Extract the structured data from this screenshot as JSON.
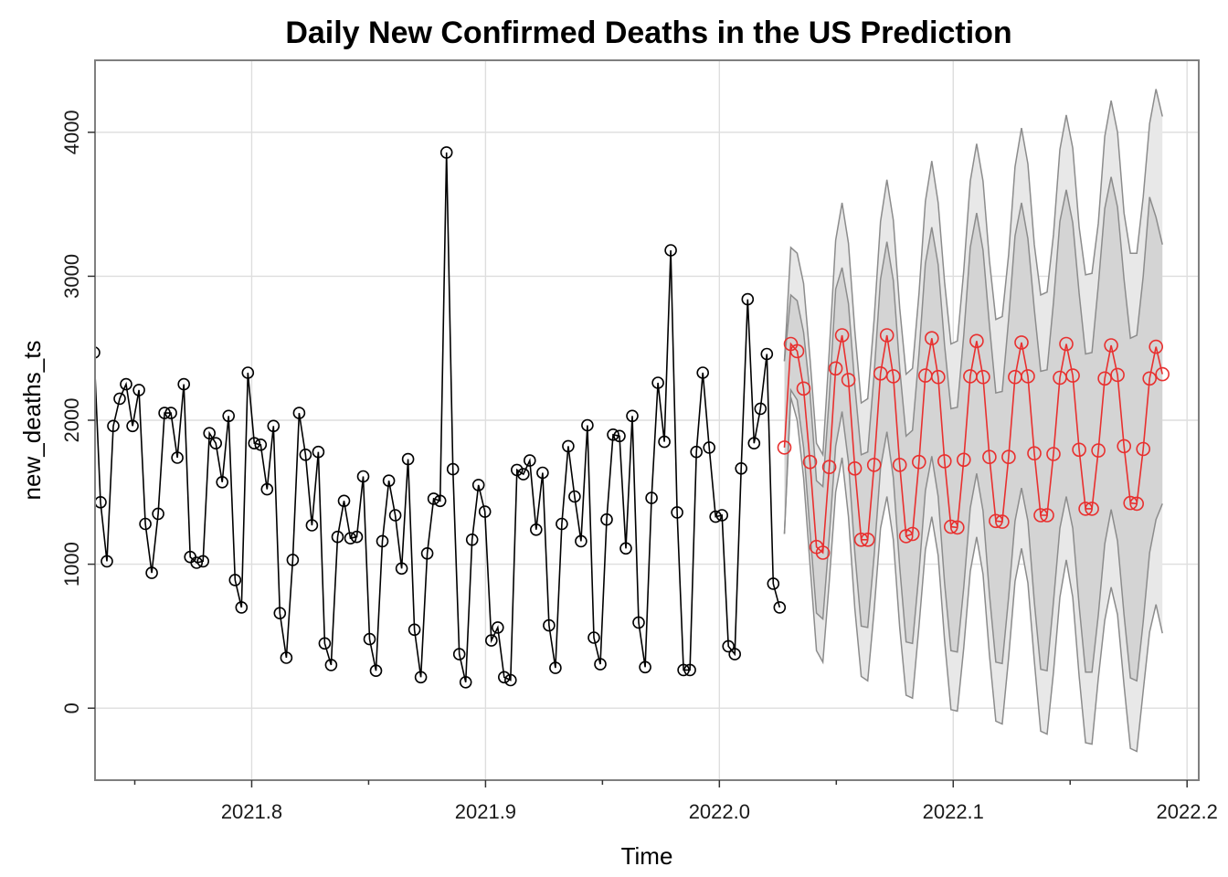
{
  "chart_data": {
    "type": "line",
    "title": "Daily New Confirmed Deaths in the US Prediction",
    "xlabel": "Time",
    "ylabel": "new_deaths_ts",
    "xlim": [
      2021.733,
      2022.205
    ],
    "ylim": [
      -500,
      4500
    ],
    "x_ticks": [
      2021.8,
      2021.9,
      2022.0,
      2022.1,
      2022.2
    ],
    "x_tick_labels": [
      "2021.8",
      "2021.9",
      "2022.0",
      "2022.1",
      "2022.2"
    ],
    "x_minor_ticks": [
      2021.75,
      2021.85,
      2021.95,
      2022.05,
      2022.15
    ],
    "y_ticks": [
      0,
      1000,
      2000,
      3000,
      4000
    ],
    "y_tick_labels": [
      "0",
      "1000",
      "2000",
      "3000",
      "4000"
    ],
    "grid": true,
    "step": 0.00274,
    "observed_start": 2021.7326,
    "forecast_start": 2022.0278,
    "series": [
      {
        "role": "observed",
        "color": "#000000",
        "values": [
          2470,
          1430,
          1020,
          1960,
          2150,
          2250,
          1960,
          2210,
          1280,
          940,
          1350,
          2050,
          2050,
          1740,
          2250,
          1050,
          1010,
          1020,
          1910,
          1840,
          1570,
          2030,
          890,
          700,
          2330,
          1840,
          1830,
          1520,
          1960,
          660,
          350,
          1030,
          2050,
          1760,
          1270,
          1780,
          450,
          300,
          1190,
          1440,
          1180,
          1190,
          1610,
          480,
          260,
          1160,
          1580,
          1340,
          970,
          1730,
          545,
          215,
          1075,
          1455,
          1440,
          3860,
          1660,
          375,
          180,
          1170,
          1550,
          1365,
          470,
          560,
          215,
          195,
          1655,
          1625,
          1720,
          1240,
          1635,
          575,
          280,
          1280,
          1820,
          1470,
          1160,
          1965,
          490,
          305,
          1310,
          1900,
          1890,
          1110,
          2030,
          595,
          285,
          1460,
          2260,
          1850,
          3180,
          1360,
          265,
          265,
          1780,
          2330,
          1810,
          1330,
          1340,
          430,
          375,
          1665,
          2840,
          1840,
          2080,
          2460,
          865,
          700
        ]
      },
      {
        "role": "forecast",
        "color": "#e8302f",
        "values": [
          1810,
          2530,
          2480,
          2220,
          1710,
          1120,
          1080,
          1675,
          2360,
          2590,
          2280,
          1665,
          1170,
          1170,
          1690,
          2325,
          2590,
          2305,
          1690,
          1195,
          1210,
          1710,
          2310,
          2570,
          2300,
          1715,
          1260,
          1255,
          1725,
          2305,
          2550,
          2300,
          1745,
          1300,
          1295,
          1745,
          2300,
          2540,
          2305,
          1770,
          1340,
          1340,
          1765,
          2295,
          2530,
          2310,
          1795,
          1385,
          1385,
          1790,
          2290,
          2520,
          2315,
          1820,
          1425,
          1420,
          1800,
          2290,
          2510,
          2320
        ]
      }
    ],
    "intervals": [
      {
        "level": "80",
        "color": "#d4d4d4",
        "lower": [
          1210,
          2210,
          2140,
          1810,
          1230,
          660,
          620,
          1190,
          1820,
          2060,
          1710,
          1080,
          570,
          560,
          1060,
          1670,
          1920,
          1600,
          980,
          460,
          450,
          940,
          1510,
          1750,
          1470,
          870,
          400,
          390,
          840,
          1390,
          1630,
          1370,
          790,
          320,
          310,
          770,
          1300,
          1530,
          1300,
          740,
          270,
          260,
          740,
          1250,
          1470,
          1250,
          710,
          250,
          250,
          650,
          1140,
          1380,
          1160,
          650,
          210,
          190,
          600,
          1080,
          1310,
          1420
        ],
        "upper": [
          2410,
          2870,
          2830,
          2610,
          2190,
          1580,
          1540,
          2160,
          2910,
          3060,
          2810,
          2240,
          1760,
          1780,
          2320,
          2980,
          3240,
          2970,
          2360,
          1890,
          1930,
          2460,
          3090,
          3340,
          3080,
          2520,
          2080,
          2090,
          2590,
          3200,
          3440,
          3180,
          2660,
          2190,
          2200,
          2700,
          3280,
          3510,
          3260,
          2770,
          2340,
          2350,
          2820,
          3380,
          3600,
          3370,
          2880,
          2460,
          2470,
          2940,
          3470,
          3690,
          3480,
          2980,
          2570,
          2590,
          3000,
          3550,
          3410,
          3220
        ]
      },
      {
        "level": "95",
        "color": "#e8e8e8",
        "lower": [
          1210,
          2160,
          2000,
          1600,
          1000,
          400,
          320,
          880,
          1500,
          1740,
          1330,
          690,
          220,
          190,
          680,
          1250,
          1470,
          1170,
          560,
          90,
          70,
          570,
          1100,
          1330,
          1060,
          470,
          -10,
          -20,
          420,
          950,
          1190,
          930,
          370,
          -90,
          -110,
          350,
          880,
          1110,
          870,
          330,
          -160,
          -180,
          250,
          770,
          1030,
          770,
          220,
          -240,
          -250,
          210,
          610,
          840,
          650,
          160,
          -280,
          -300,
          120,
          530,
          720,
          520
        ],
        "upper": [
          2410,
          3200,
          3160,
          2950,
          2430,
          1840,
          1760,
          2480,
          3250,
          3510,
          3230,
          2620,
          2120,
          2150,
          2700,
          3380,
          3670,
          3390,
          2780,
          2320,
          2360,
          2880,
          3520,
          3800,
          3510,
          2960,
          2530,
          2550,
          3040,
          3660,
          3920,
          3660,
          3110,
          2700,
          2720,
          3150,
          3760,
          4030,
          3780,
          3220,
          2870,
          2890,
          3290,
          3880,
          4120,
          3890,
          3340,
          3010,
          3020,
          3370,
          3970,
          4220,
          4000,
          3440,
          3160,
          3160,
          3550,
          4060,
          4300,
          4110
        ]
      }
    ]
  }
}
